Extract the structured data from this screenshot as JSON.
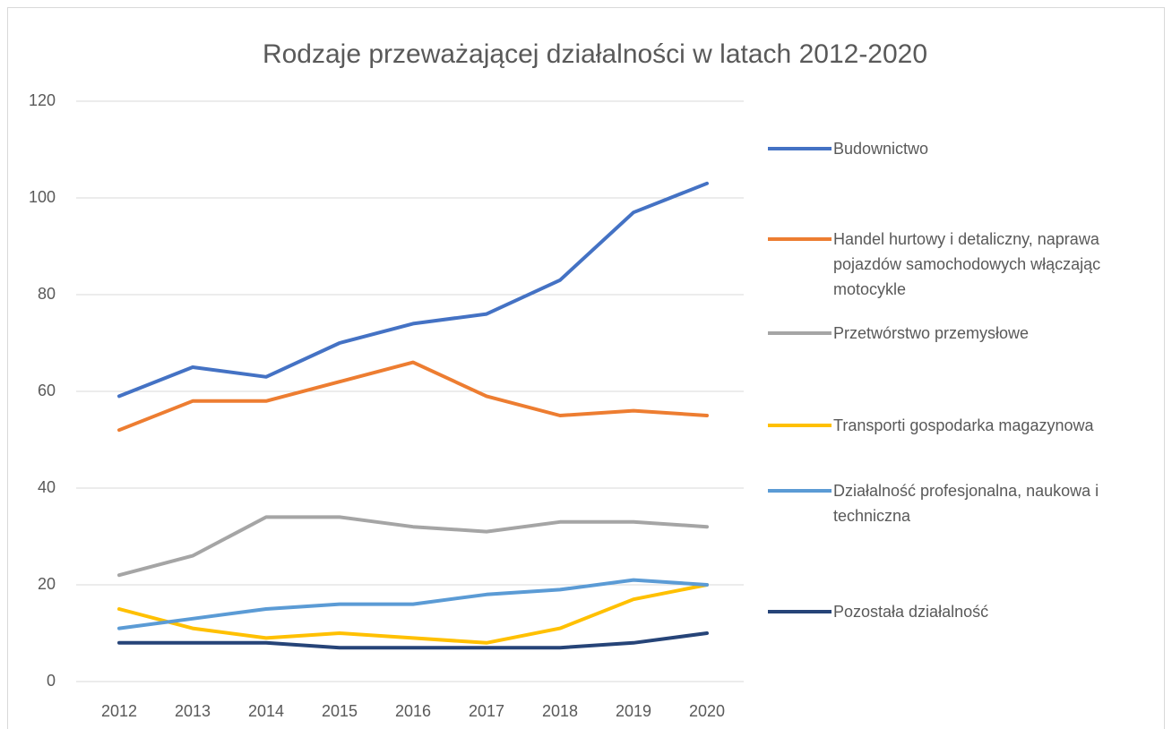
{
  "chart_data": {
    "type": "line",
    "title": "Rodzaje przeważającej działalności w latach 2012-2020",
    "categories": [
      "2012",
      "2013",
      "2014",
      "2015",
      "2016",
      "2017",
      "2018",
      "2019",
      "2020"
    ],
    "series": [
      {
        "name": "Budownictwo",
        "color": "#4472c4",
        "values": [
          59,
          65,
          63,
          70,
          74,
          76,
          83,
          97,
          103
        ]
      },
      {
        "name": "Handel hurtowy i detaliczny, naprawa pojazdów samochodowych włączając motocykle",
        "color": "#ed7d31",
        "values": [
          52,
          58,
          58,
          62,
          66,
          59,
          55,
          56,
          55
        ]
      },
      {
        "name": "Przetwórstwo przemysłowe",
        "color": "#a5a5a5",
        "values": [
          22,
          26,
          34,
          34,
          32,
          31,
          33,
          33,
          32
        ]
      },
      {
        "name": "Transporti gospodarka magazynowa",
        "color": "#ffc000",
        "values": [
          15,
          11,
          9,
          10,
          9,
          8,
          11,
          17,
          20
        ]
      },
      {
        "name": "Działalność profesjonalna, naukowa i techniczna",
        "color": "#5b9bd5",
        "values": [
          11,
          13,
          15,
          16,
          16,
          18,
          19,
          21,
          20
        ]
      },
      {
        "name": "Pozostała działalność",
        "color": "#264478",
        "values": [
          8,
          8,
          8,
          7,
          7,
          7,
          7,
          8,
          10
        ]
      }
    ],
    "ylim": [
      0,
      120
    ],
    "yticks": [
      0,
      20,
      40,
      60,
      80,
      100,
      120
    ],
    "grid": true,
    "legend": "right"
  }
}
